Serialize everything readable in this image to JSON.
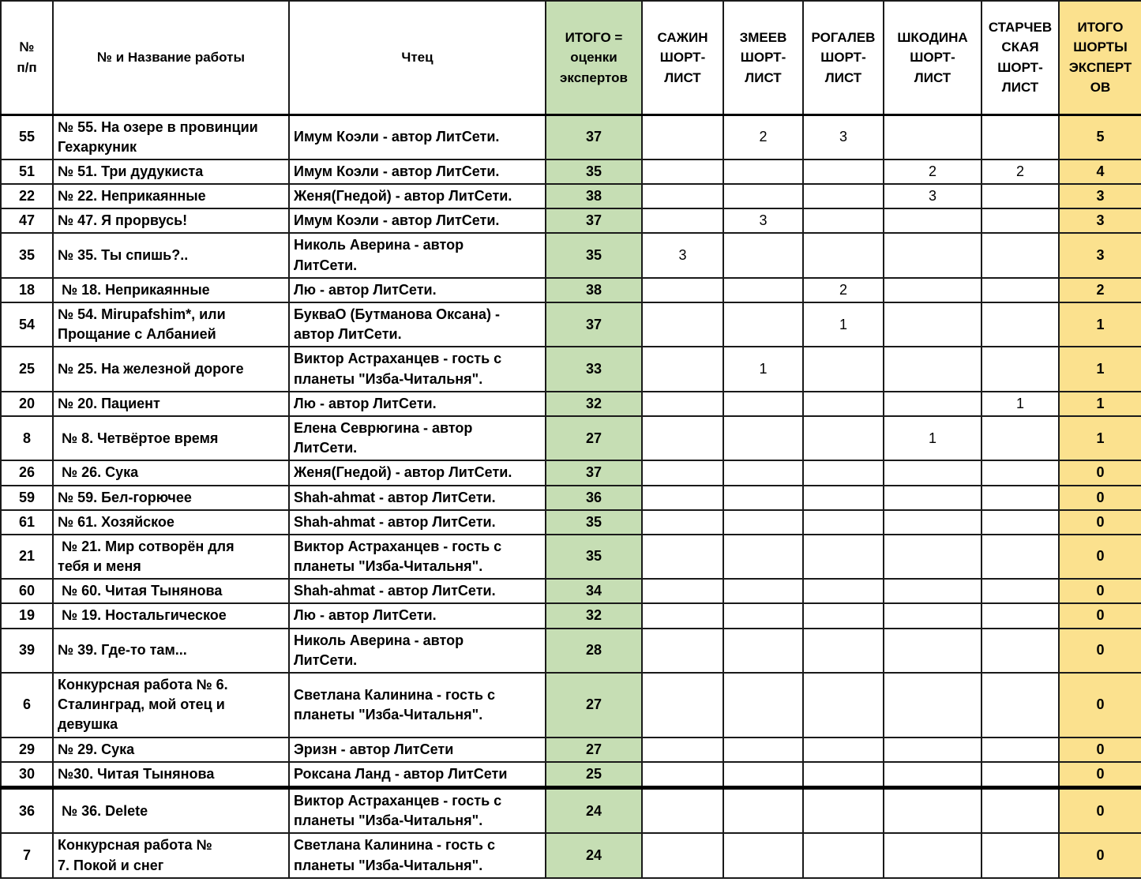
{
  "colors": {
    "total_column_bg": "#c6deb4",
    "final_column_bg": "#fbe18e",
    "grid_line": "#1a1a1a",
    "text": "#000000"
  },
  "table": {
    "columns": [
      {
        "id": "num",
        "label": "№\nп/п"
      },
      {
        "id": "title",
        "label": "№ и Название работы"
      },
      {
        "id": "reader",
        "label": "Чтец"
      },
      {
        "id": "total",
        "label": "ИТОГО =\nоценки\nэкспертов"
      },
      {
        "id": "sazhin",
        "label": "САЖИН\nШОРТ-\nЛИСТ"
      },
      {
        "id": "zmeev",
        "label": "ЗМЕЕВ\nШОРТ-\nЛИСТ"
      },
      {
        "id": "rogalev",
        "label": "РОГАЛЕВ\nШОРТ-\nЛИСТ"
      },
      {
        "id": "shkodina",
        "label": "ШКОДИНА\nШОРТ-\nЛИСТ"
      },
      {
        "id": "starchevskaya",
        "label": "СТАРЧЕВ\nСКАЯ\nШОРТ-\nЛИСТ"
      },
      {
        "id": "final",
        "label": "ИТОГО\nШОРТЫ\nЭКСПЕРТ\nОВ"
      }
    ],
    "rows": [
      {
        "num": "55",
        "title": "№ 55. На озере в провинции\nГехаркуник",
        "reader": "Имум Коэли - автор ЛитСети.",
        "total": "37",
        "shortlists": [
          "",
          "2",
          "3",
          "",
          ""
        ],
        "final": "5",
        "thick_bottom": false
      },
      {
        "num": "51",
        "title": "№ 51. Три дудукиста",
        "reader": "Имум Коэли - автор ЛитСети.",
        "total": "35",
        "shortlists": [
          "",
          "",
          "",
          "2",
          "2"
        ],
        "final": "4",
        "thick_bottom": false
      },
      {
        "num": "22",
        "title": "№ 22. Неприкаянные",
        "reader": "Женя(Гнедой) - автор ЛитСети.",
        "total": "38",
        "shortlists": [
          "",
          "",
          "",
          "3",
          ""
        ],
        "final": "3",
        "thick_bottom": false
      },
      {
        "num": "47",
        "title": "№ 47. Я прорвусь!",
        "reader": "Имум Коэли - автор ЛитСети.",
        "total": "37",
        "shortlists": [
          "",
          "3",
          "",
          "",
          ""
        ],
        "final": "3",
        "thick_bottom": false
      },
      {
        "num": "35",
        "title": "№ 35. Ты спишь?..",
        "reader": "Николь Аверина - автор\nЛитСети.",
        "total": "35",
        "shortlists": [
          "3",
          "",
          "",
          "",
          ""
        ],
        "final": "3",
        "thick_bottom": false
      },
      {
        "num": "18",
        "title": " № 18. Неприкаянные",
        "reader": "Лю - автор ЛитСети.",
        "total": "38",
        "shortlists": [
          "",
          "",
          "2",
          "",
          ""
        ],
        "final": "2",
        "thick_bottom": false
      },
      {
        "num": "54",
        "title": "№ 54. Mirupafshim*, или\nПрощание с Албанией",
        "reader": "БукваО (Бутманова Оксана) -\nавтор ЛитСети.",
        "total": "37",
        "shortlists": [
          "",
          "",
          "1",
          "",
          ""
        ],
        "final": "1",
        "thick_bottom": false
      },
      {
        "num": "25",
        "title": "№ 25. На железной дороге",
        "reader": "Виктор Астраханцев - гость с\nпланеты \"Изба-Читальня\".",
        "total": "33",
        "shortlists": [
          "",
          "1",
          "",
          "",
          ""
        ],
        "final": "1",
        "thick_bottom": false
      },
      {
        "num": "20",
        "title": "№ 20. Пациент",
        "reader": "Лю - автор ЛитСети.",
        "total": "32",
        "shortlists": [
          "",
          "",
          "",
          "",
          "1"
        ],
        "final": "1",
        "thick_bottom": false
      },
      {
        "num": "8",
        "title": " № 8. Четвёртое время",
        "reader": "Елена Севрюгина - автор\nЛитСети.",
        "total": "27",
        "shortlists": [
          "",
          "",
          "",
          "1",
          ""
        ],
        "final": "1",
        "thick_bottom": false
      },
      {
        "num": "26",
        "title": " № 26. Сука",
        "reader": "Женя(Гнедой) - автор ЛитСети.",
        "total": "37",
        "shortlists": [
          "",
          "",
          "",
          "",
          ""
        ],
        "final": "0",
        "thick_bottom": false
      },
      {
        "num": "59",
        "title": "№ 59. Бел-горючее",
        "reader": "Shah-ahmat - автор ЛитСети.",
        "total": "36",
        "shortlists": [
          "",
          "",
          "",
          "",
          ""
        ],
        "final": "0",
        "thick_bottom": false
      },
      {
        "num": "61",
        "title": "№ 61. Хозяйское",
        "reader": "Shah-ahmat - автор ЛитСети.",
        "total": "35",
        "shortlists": [
          "",
          "",
          "",
          "",
          ""
        ],
        "final": "0",
        "thick_bottom": false
      },
      {
        "num": "21",
        "title": " № 21. Мир сотворён для\nтебя и меня",
        "reader": "Виктор Астраханцев - гость с\nпланеты \"Изба-Читальня\".",
        "total": "35",
        "shortlists": [
          "",
          "",
          "",
          "",
          ""
        ],
        "final": "0",
        "thick_bottom": false
      },
      {
        "num": "60",
        "title": " № 60. Читая Тынянова",
        "reader": "Shah-ahmat - автор ЛитСети.",
        "total": "34",
        "shortlists": [
          "",
          "",
          "",
          "",
          ""
        ],
        "final": "0",
        "thick_bottom": false
      },
      {
        "num": "19",
        "title": " № 19. Ностальгическое",
        "reader": "Лю - автор ЛитСети.",
        "total": "32",
        "shortlists": [
          "",
          "",
          "",
          "",
          ""
        ],
        "final": "0",
        "thick_bottom": false
      },
      {
        "num": "39",
        "title": "№ 39. Где-то там...",
        "reader": "Николь Аверина - автор\nЛитСети.",
        "total": "28",
        "shortlists": [
          "",
          "",
          "",
          "",
          ""
        ],
        "final": "0",
        "thick_bottom": false
      },
      {
        "num": "6",
        "title": "Конкурсная работа № 6.\nСталинград, мой отец и\nдевушка",
        "reader": "Светлана Калинина - гость с\nпланеты \"Изба-Читальня\".",
        "total": "27",
        "shortlists": [
          "",
          "",
          "",
          "",
          ""
        ],
        "final": "0",
        "thick_bottom": false
      },
      {
        "num": "29",
        "title": "№ 29. Сука",
        "reader": "Эризн - автор ЛитСети",
        "total": "27",
        "shortlists": [
          "",
          "",
          "",
          "",
          ""
        ],
        "final": "0",
        "thick_bottom": false
      },
      {
        "num": "30",
        "title": "№30. Читая Тынянова",
        "reader": "Роксана Ланд - автор ЛитСети",
        "total": "25",
        "shortlists": [
          "",
          "",
          "",
          "",
          ""
        ],
        "final": "0",
        "thick_bottom": true
      },
      {
        "num": "36",
        "title": " № 36. Delete",
        "reader": "Виктор Астраханцев - гость с\nпланеты \"Изба-Читальня\".",
        "total": "24",
        "shortlists": [
          "",
          "",
          "",
          "",
          ""
        ],
        "final": "0",
        "thick_bottom": false
      },
      {
        "num": "7",
        "title": "Конкурсная работа №\n7. Покой и снег",
        "reader": "Светлана Калинина - гость с\nпланеты \"Изба-Читальня\".",
        "total": "24",
        "shortlists": [
          "",
          "",
          "",
          "",
          ""
        ],
        "final": "0",
        "thick_bottom": false
      }
    ]
  }
}
